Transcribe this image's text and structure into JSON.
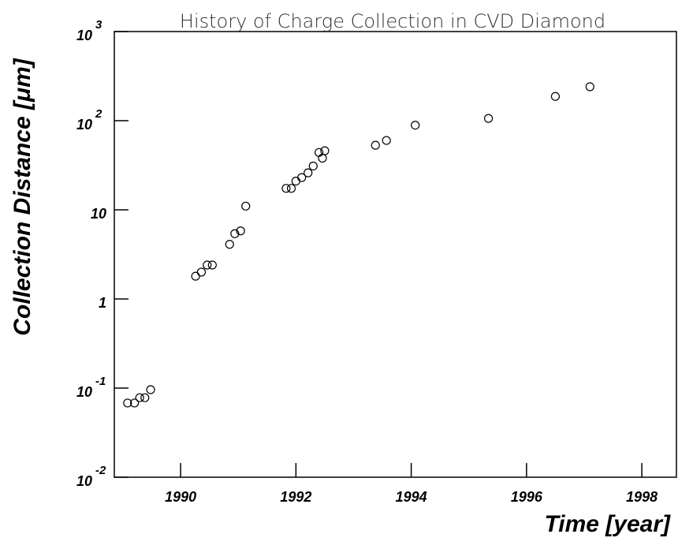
{
  "chart_data": {
    "type": "scatter",
    "title": "History of Charge Collection in CVD Diamond",
    "x_label": "Time  [year]",
    "y_label": "Collection Distance [μm]",
    "x": [
      1989.08,
      1989.2,
      1989.29,
      1989.38,
      1989.48,
      1990.26,
      1990.36,
      1990.46,
      1990.55,
      1990.85,
      1990.94,
      1991.04,
      1991.13,
      1991.83,
      1991.92,
      1992.0,
      1992.1,
      1992.21,
      1992.3,
      1992.4,
      1992.46,
      1992.5,
      1993.38,
      1993.57,
      1994.07,
      1995.34,
      1996.5,
      1997.1
    ],
    "values": [
      0.068,
      0.068,
      0.078,
      0.078,
      0.096,
      1.8,
      2.0,
      2.4,
      2.4,
      4.1,
      5.4,
      5.8,
      11,
      17.4,
      17.4,
      21,
      23,
      26,
      31,
      44,
      38,
      46,
      53,
      60,
      89,
      106,
      187,
      240
    ],
    "color": "#000000",
    "xlim": [
      1988.85,
      1998.6
    ],
    "xticks": [
      1990,
      1992,
      1994,
      1996,
      1998
    ],
    "ylim": [
      0.01,
      1000
    ],
    "yticks": [
      {
        "value": 0.01,
        "label": "10",
        "exponent": "-2"
      },
      {
        "value": 0.1,
        "label": "10",
        "exponent": "-1"
      },
      1,
      10,
      {
        "value": 100,
        "label": "10",
        "exponent": "2"
      },
      {
        "value": 1000,
        "label": "10",
        "exponent": "3"
      }
    ],
    "y_log": true,
    "grid": false
  }
}
